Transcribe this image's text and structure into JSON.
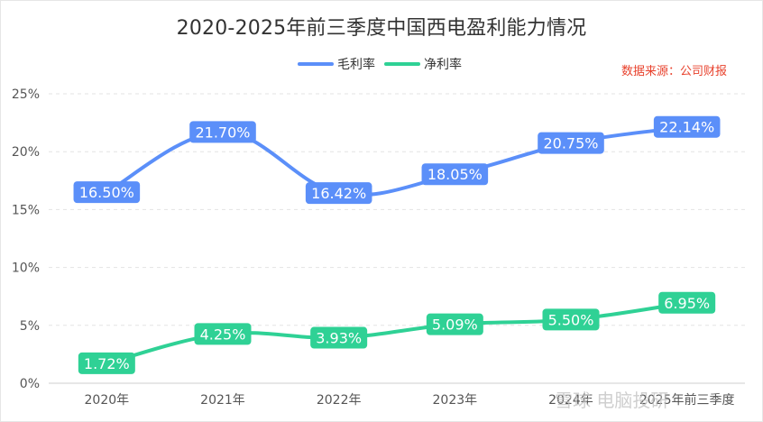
{
  "title": "2020-2025年前三季度中国西电盈利能力情况",
  "source_note": "数据来源：公司财报",
  "watermark": "雪球 电脑投研",
  "chart_data": {
    "type": "line",
    "title": "2020-2025年前三季度中国西电盈利能力情况",
    "xlabel": "",
    "ylabel": "",
    "categories": [
      "2020年",
      "2021年",
      "2022年",
      "2023年",
      "2024年",
      "2025年前三季度"
    ],
    "y_ticks": [
      "0%",
      "5%",
      "10%",
      "15%",
      "20%",
      "25%"
    ],
    "ylim": [
      0,
      25
    ],
    "grid": true,
    "legend_position": "top",
    "series": [
      {
        "name": "毛利率",
        "color": "#5b8ff9",
        "values": [
          16.5,
          21.7,
          16.42,
          18.05,
          20.75,
          22.14
        ],
        "labels": [
          "16.50%",
          "21.70%",
          "16.42%",
          "18.05%",
          "20.75%",
          "22.14%"
        ]
      },
      {
        "name": "净利率",
        "color": "#2fd195",
        "values": [
          1.72,
          4.25,
          3.93,
          5.09,
          5.5,
          6.95
        ],
        "labels": [
          "1.72%",
          "4.25%",
          "3.93%",
          "5.09%",
          "5.50%",
          "6.95%"
        ]
      }
    ]
  }
}
